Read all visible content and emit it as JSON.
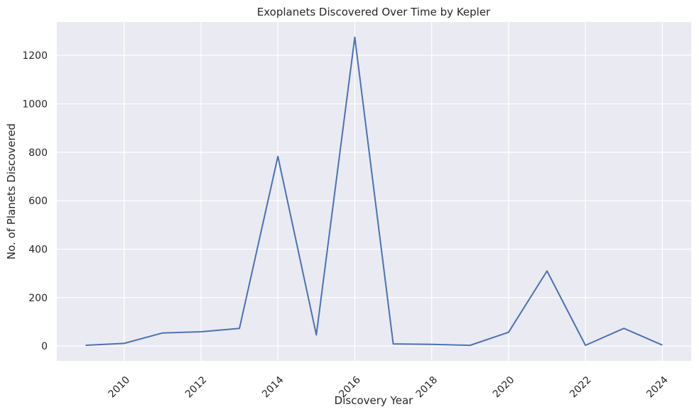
{
  "chart_data": {
    "type": "line",
    "title": "Exoplanets Discovered Over Time by Kepler",
    "xlabel": "Discovery Year",
    "ylabel": "No. of Planets Discovered",
    "x": [
      2009,
      2010,
      2011,
      2012,
      2013,
      2014,
      2015,
      2016,
      2017,
      2018,
      2019,
      2020,
      2021,
      2022,
      2023,
      2024
    ],
    "series": [
      {
        "values": [
          3,
          11,
          54,
          59,
          73,
          783,
          46,
          1275,
          9,
          7,
          3,
          57,
          310,
          3,
          73,
          4
        ],
        "color": "#4c72b0"
      }
    ],
    "xlim": [
      2008.25,
      2024.75
    ],
    "ylim": [
      -61,
      1338
    ],
    "xticks": [
      2010,
      2012,
      2014,
      2016,
      2018,
      2020,
      2022,
      2024
    ],
    "yticks": [
      0,
      200,
      400,
      600,
      800,
      1000,
      1200
    ],
    "grid": true,
    "background_color": "#eaeaf2"
  }
}
